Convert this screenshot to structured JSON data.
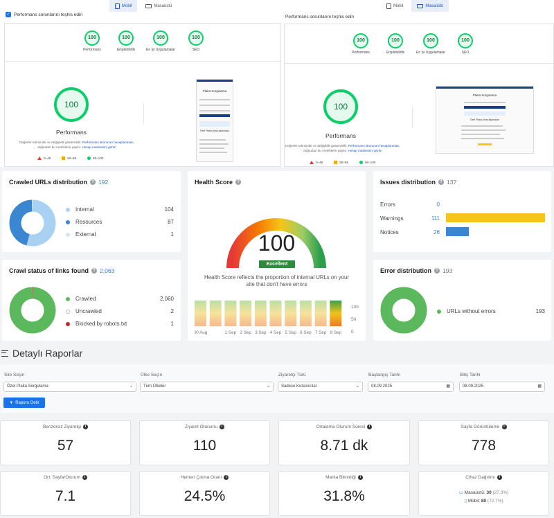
{
  "lighthouse": {
    "tabs": {
      "mobile": "Mobil",
      "desktop": "Masaüstü"
    },
    "title": "Performans sorunlarını teşhis edin",
    "categories": [
      "Performans",
      "Erişilebilirlik",
      "En İyi Uygulamalar",
      "SEO"
    ],
    "scores": [
      "100",
      "100",
      "100",
      "100"
    ],
    "big_score": "100",
    "big_label": "Performans",
    "note_part1": "Değerler tahminidir ve değişiklik gösterebilir.",
    "note_link1": "Performans skorunun hesaplanması",
    "note_part2": ", doğrudan bu metriklerle yapılır.",
    "note_link2": "Hesap makinesini görün",
    "legend": [
      "0–49",
      "50–89",
      "90–100"
    ],
    "thumb_title": "Plaka Sorgulama",
    "thumb_title2": "Özel Plaka Alma Aşamaları",
    "thumb_title3": "Özel Plaka Alma Aşamaları"
  },
  "crawled": {
    "title": "Crawled URLs distribution",
    "count": "192",
    "rows": [
      {
        "label": "Internal",
        "value": "104",
        "color": "#a9d1f1"
      },
      {
        "label": "Resources",
        "value": "87",
        "color": "#3a86d0"
      },
      {
        "label": "External",
        "value": "1",
        "color": "#cfe9e6"
      }
    ],
    "chart_data": {
      "type": "pie",
      "categories": [
        "Internal",
        "Resources",
        "External"
      ],
      "values": [
        104,
        87,
        1
      ]
    }
  },
  "health": {
    "title": "Health Score",
    "score": "100",
    "badge": "Excellent",
    "desc": "Health Score reflects the proportion of internal URLs on your site that don't have errors",
    "x_labels": [
      "30 Aug",
      "1 Sep",
      "2 Sep",
      "3 Sep",
      "4 Sep",
      "5 Sep",
      "6 Sep",
      "7 Sep",
      "8 Sep"
    ],
    "y_labels": [
      "100",
      "50",
      "0"
    ],
    "chart_data": {
      "type": "bar",
      "categories": [
        "30 Aug",
        "31 Aug",
        "1 Sep",
        "2 Sep",
        "3 Sep",
        "4 Sep",
        "5 Sep",
        "6 Sep",
        "7 Sep",
        "8 Sep"
      ],
      "values": [
        100,
        100,
        100,
        100,
        100,
        100,
        100,
        100,
        100,
        100
      ],
      "ylim": [
        0,
        100
      ]
    }
  },
  "issues": {
    "title": "Issues distribution",
    "count": "137",
    "rows": [
      {
        "label": "Errors",
        "value": "0",
        "color": "#e53935",
        "frac": 0
      },
      {
        "label": "Warnings",
        "value": "111",
        "color": "#f5c518",
        "frac": 1.0
      },
      {
        "label": "Notices",
        "value": "26",
        "color": "#3a86d0",
        "frac": 0.234
      }
    ]
  },
  "crawlstatus": {
    "title": "Crawl status of links found",
    "count": "2,063",
    "rows": [
      {
        "label": "Crawled",
        "value": "2,060",
        "color": "#5cb85c"
      },
      {
        "label": "Uncrawled",
        "value": "2",
        "color": "#e5e5e5"
      },
      {
        "label": "Blocked by robots.txt",
        "value": "1",
        "color": "#c62828"
      }
    ],
    "chart_data": {
      "type": "pie",
      "categories": [
        "Crawled",
        "Uncrawled",
        "Blocked by robots.txt"
      ],
      "values": [
        2060,
        2,
        1
      ]
    }
  },
  "errordist": {
    "title": "Error distribution",
    "count": "193",
    "rows": [
      {
        "label": "URLs without errors",
        "value": "193",
        "color": "#5cb85c"
      }
    ],
    "chart_data": {
      "type": "pie",
      "categories": [
        "URLs without errors"
      ],
      "values": [
        193
      ]
    }
  },
  "reports": {
    "title": "Detaylı Raporlar",
    "filters": [
      {
        "label": "Site Seçin",
        "value": "Özel Plaka Sorgulama"
      },
      {
        "label": "Ülke Seçin",
        "value": "Tüm Ülkeler"
      },
      {
        "label": "Ziyaretçi Türü",
        "value": "Sadece Kullanıcılar"
      },
      {
        "label": "Başlangıç Tarihi",
        "value": "08.09.2025"
      },
      {
        "label": "Bitiş Tarihi",
        "value": "08.09.2025"
      }
    ],
    "button": "Raporu Getir",
    "stats": [
      {
        "label": "Benzersiz Ziyaretçi",
        "value": "57"
      },
      {
        "label": "Ziyaret Oturumu",
        "value": "110"
      },
      {
        "label": "Ortalama Oturum Süresi",
        "value": "8.71 dk"
      },
      {
        "label": "Sayfa Görüntüleme",
        "value": "778"
      },
      {
        "label": "Ort. Sayfa/Oturum",
        "value": "7.1"
      },
      {
        "label": "Hemen Çıkma Oranı",
        "value": "24.5%"
      },
      {
        "label": "Marka Bilinirliği",
        "value": "31.8%"
      }
    ],
    "device": {
      "label": "Cihaz Dağılımı",
      "desktop": {
        "name": "Masaüstü",
        "count": "30",
        "pct": "(27.3%)"
      },
      "mobile": {
        "name": "Mobil",
        "count": "80",
        "pct": "(72.7%)"
      }
    }
  }
}
